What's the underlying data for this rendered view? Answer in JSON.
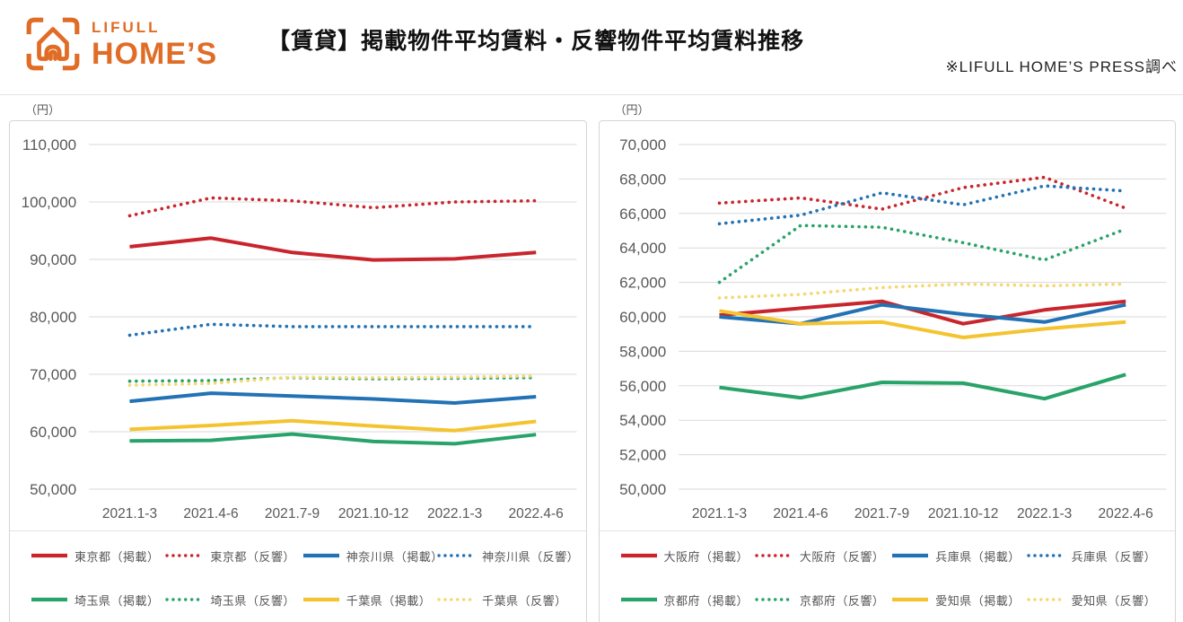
{
  "header": {
    "logo_line1": "LIFULL",
    "logo_line2": "HOME’S",
    "title": "【賃貸】掲載物件平均賃料・反響物件平均賃料推移",
    "note": "※LIFULL HOME’S PRESS調べ",
    "brand_color": "#e06c26"
  },
  "axis_style": {
    "tick_color": "#595959",
    "grid_color": "#d9d9d9"
  },
  "chart_data": [
    {
      "type": "line",
      "unit": "（円）",
      "categories": [
        "2021.1-3",
        "2021.4-6",
        "2021.7-9",
        "2021.10-12",
        "2022.1-3",
        "2022.4-6"
      ],
      "ylim": [
        50000,
        110000
      ],
      "ytick_step": 10000,
      "grid": true,
      "legend_position": "bottom",
      "series": [
        {
          "name": "東京都（掲載）",
          "style": "solid",
          "color": "#c9252d",
          "values": [
            92200,
            93700,
            91200,
            89900,
            90100,
            91200
          ]
        },
        {
          "name": "東京都（反響）",
          "style": "dotted",
          "color": "#c9252d",
          "values": [
            97600,
            100700,
            100200,
            99000,
            100000,
            100200
          ]
        },
        {
          "name": "神奈川県（掲載）",
          "style": "solid",
          "color": "#2272b4",
          "values": [
            65300,
            66700,
            66200,
            65700,
            65000,
            66100
          ]
        },
        {
          "name": "神奈川県（反響）",
          "style": "dotted",
          "color": "#2272b4",
          "values": [
            76800,
            78700,
            78300,
            78300,
            78300,
            78300
          ]
        },
        {
          "name": "埼玉県（掲載）",
          "style": "solid",
          "color": "#28a369",
          "values": [
            58400,
            58500,
            59600,
            58300,
            57900,
            59500
          ]
        },
        {
          "name": "埼玉県（反響）",
          "style": "dotted",
          "color": "#28a369",
          "values": [
            68800,
            68900,
            69400,
            69200,
            69300,
            69400
          ]
        },
        {
          "name": "千葉県（掲載）",
          "style": "solid",
          "color": "#f4c430",
          "values": [
            60400,
            61100,
            61900,
            61000,
            60200,
            61800
          ]
        },
        {
          "name": "千葉県（反響）",
          "style": "dotted",
          "color": "#f5d871",
          "values": [
            68100,
            68400,
            69500,
            69400,
            69500,
            69700
          ]
        }
      ]
    },
    {
      "type": "line",
      "unit": "（円）",
      "categories": [
        "2021.1-3",
        "2021.4-6",
        "2021.7-9",
        "2021.10-12",
        "2022.1-3",
        "2022.4-6"
      ],
      "ylim": [
        50000,
        70000
      ],
      "ytick_step": 2000,
      "grid": true,
      "legend_position": "bottom",
      "series": [
        {
          "name": "大阪府（掲載）",
          "style": "solid",
          "color": "#c9252d",
          "values": [
            60100,
            60500,
            60900,
            59600,
            60400,
            60900
          ]
        },
        {
          "name": "大阪府（反響）",
          "style": "dotted",
          "color": "#c9252d",
          "values": [
            66600,
            66900,
            66250,
            67500,
            68100,
            66300
          ]
        },
        {
          "name": "兵庫県（掲載）",
          "style": "solid",
          "color": "#2272b4",
          "values": [
            60000,
            59600,
            60700,
            60150,
            59700,
            60700
          ]
        },
        {
          "name": "兵庫県（反響）",
          "style": "dotted",
          "color": "#2272b4",
          "values": [
            65400,
            65900,
            67200,
            66500,
            67600,
            67300
          ]
        },
        {
          "name": "京都府（掲載）",
          "style": "solid",
          "color": "#28a369",
          "values": [
            55900,
            55300,
            56200,
            56150,
            55250,
            56650
          ]
        },
        {
          "name": "京都府（反響）",
          "style": "dotted",
          "color": "#28a369",
          "values": [
            62000,
            65300,
            65200,
            64300,
            63300,
            65100
          ]
        },
        {
          "name": "愛知県（掲載）",
          "style": "solid",
          "color": "#f4c430",
          "values": [
            60350,
            59600,
            59700,
            58800,
            59300,
            59700
          ]
        },
        {
          "name": "愛知県（反響）",
          "style": "dotted",
          "color": "#f5d871",
          "values": [
            61100,
            61300,
            61700,
            61900,
            61800,
            61900
          ]
        }
      ]
    }
  ]
}
